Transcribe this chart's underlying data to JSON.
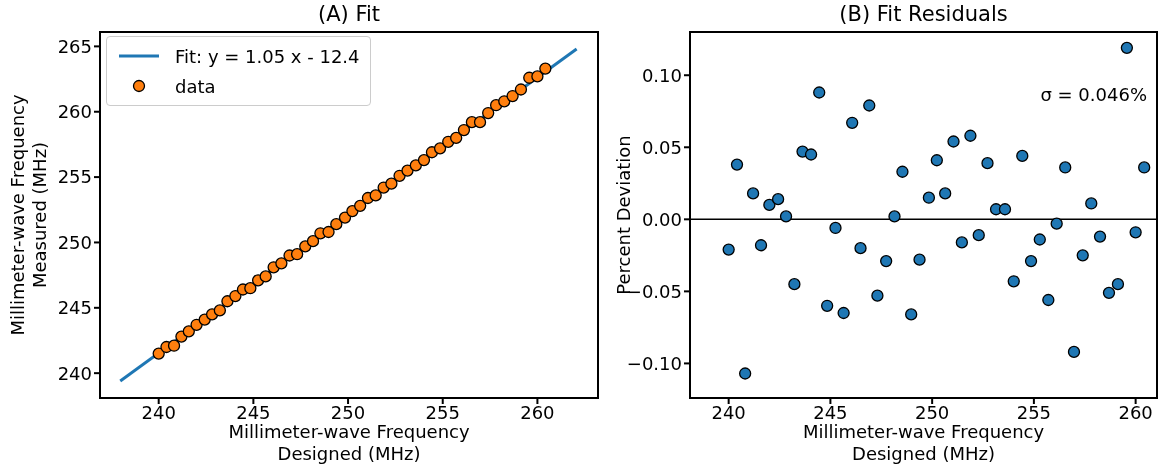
{
  "chart_data": [
    {
      "type": "scatter",
      "title": "(A) Fit",
      "xlabel": "Millimeter-wave Frequency\nDesigned (MHz)",
      "ylabel": "Millimeter-wave Frequency\nMeasured (MHz)",
      "xlim": [
        236.9,
        263.2
      ],
      "xticks": [
        240,
        245,
        250,
        255,
        260
      ],
      "ylim": [
        238.1,
        266.1
      ],
      "yticks": [
        240,
        245,
        250,
        255,
        260,
        265
      ],
      "legend": "top left",
      "marker": "circle",
      "grid": false,
      "series": [
        {
          "name": "Fit: y = 1.05 x - 12.4",
          "type": "line",
          "marker": "none",
          "color": "#1f77b4",
          "x": [
            237.97,
            262.07
          ],
          "values": [
            239.4,
            264.8
          ]
        },
        {
          "name": "data",
          "color": "#ff7f0e",
          "x": [
            240.0,
            240.41,
            240.81,
            241.2,
            241.59,
            242.0,
            242.43,
            242.82,
            243.23,
            243.63,
            244.05,
            244.45,
            244.84,
            245.25,
            245.65,
            246.07,
            246.48,
            246.91,
            247.31,
            247.74,
            248.15,
            248.54,
            248.97,
            249.38,
            249.84,
            250.23,
            250.64,
            251.05,
            251.46,
            251.88,
            252.29,
            252.72,
            253.14,
            253.58,
            254.01,
            254.43,
            254.86,
            255.29,
            255.71,
            256.12,
            256.54,
            256.97,
            257.4,
            257.82,
            258.25,
            258.69,
            259.13,
            259.57,
            260.0,
            260.42
          ],
          "values": [
            241.5,
            242.0,
            242.1,
            242.8,
            243.2,
            243.7,
            244.1,
            244.5,
            244.8,
            245.5,
            245.9,
            246.4,
            246.5,
            247.1,
            247.4,
            248.1,
            248.4,
            249.0,
            249.1,
            249.7,
            250.1,
            250.7,
            250.8,
            251.4,
            251.9,
            252.4,
            252.8,
            253.4,
            253.6,
            254.2,
            254.5,
            255.1,
            255.5,
            255.9,
            256.3,
            256.9,
            257.2,
            257.7,
            258.0,
            258.6,
            259.2,
            259.2,
            259.9,
            260.5,
            260.8,
            261.2,
            261.7,
            262.6,
            262.7,
            263.3
          ]
        }
      ]
    },
    {
      "type": "scatter",
      "title": "(B) Fit Residuals",
      "xlabel": "Millimeter-wave Frequency\nDesigned (MHz)",
      "ylabel": "Percent Deviation",
      "xlim": [
        238.1,
        261.05
      ],
      "xticks": [
        240,
        245,
        250,
        255,
        260
      ],
      "ylim": [
        -0.124,
        0.13
      ],
      "yticks": [
        {
          "value": -0.1,
          "label": "−0.10"
        },
        {
          "value": -0.05,
          "label": "−0.05"
        },
        {
          "value": 0,
          "label": "0.00"
        },
        {
          "value": 0.05,
          "label": "0.05"
        },
        {
          "value": 0.1,
          "label": "0.10"
        }
      ],
      "marker": "circle",
      "grid": false,
      "annotations": [
        "σ = 0.046%"
      ],
      "ref_lines": [
        {
          "axis": "y",
          "value": 0,
          "color": "#000000"
        }
      ],
      "series": [
        {
          "color": "#1f77b4",
          "x": [
            240.0,
            240.41,
            240.81,
            241.2,
            241.59,
            242.0,
            242.43,
            242.82,
            243.23,
            243.63,
            244.05,
            244.45,
            244.84,
            245.25,
            245.65,
            246.07,
            246.48,
            246.91,
            247.31,
            247.74,
            248.15,
            248.54,
            248.97,
            249.38,
            249.84,
            250.23,
            250.64,
            251.05,
            251.46,
            251.88,
            252.29,
            252.72,
            253.14,
            253.58,
            254.01,
            254.43,
            254.86,
            255.29,
            255.71,
            256.12,
            256.54,
            256.97,
            257.4,
            257.82,
            258.25,
            258.69,
            259.13,
            259.57,
            260.0,
            260.42
          ],
          "values": [
            -0.021,
            0.038,
            -0.107,
            0.018,
            -0.018,
            0.01,
            0.014,
            0.002,
            -0.045,
            0.047,
            0.045,
            0.088,
            -0.06,
            -0.006,
            -0.065,
            0.067,
            -0.02,
            0.079,
            -0.053,
            -0.029,
            0.002,
            0.033,
            -0.066,
            -0.028,
            0.015,
            0.041,
            0.018,
            0.054,
            -0.016,
            0.058,
            -0.011,
            0.039,
            0.007,
            0.007,
            -0.043,
            0.044,
            -0.029,
            -0.014,
            -0.056,
            -0.003,
            0.036,
            -0.092,
            -0.025,
            0.011,
            -0.012,
            -0.051,
            -0.045,
            0.119,
            -0.009,
            0.036
          ]
        }
      ]
    }
  ]
}
